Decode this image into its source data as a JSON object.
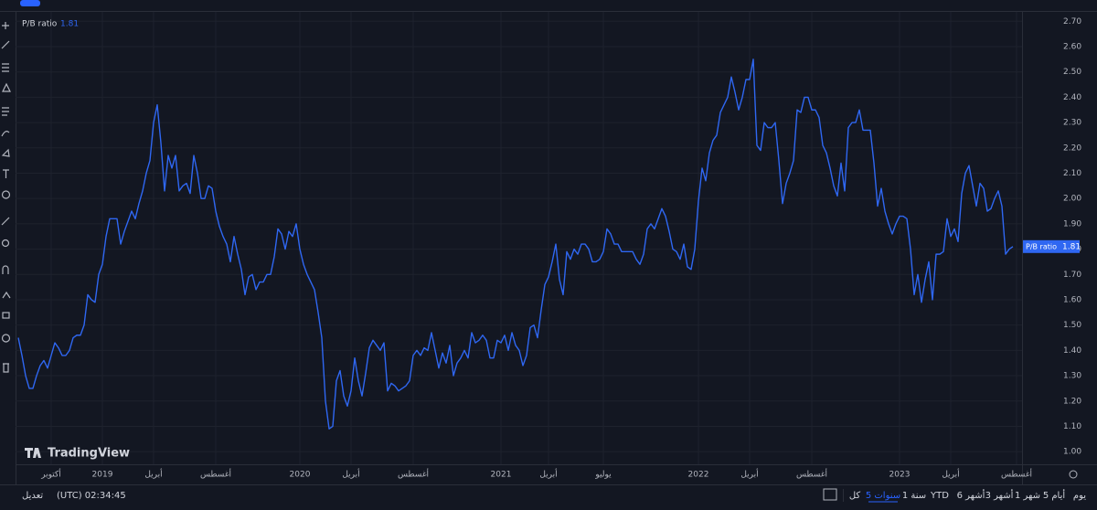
{
  "chart_data": {
    "type": "line",
    "series": [
      {
        "name": "P/B ratio",
        "color": "#2f67f2",
        "values": [
          1.45,
          1.38,
          1.3,
          1.25,
          1.25,
          1.3,
          1.34,
          1.36,
          1.33,
          1.38,
          1.43,
          1.41,
          1.38,
          1.38,
          1.4,
          1.45,
          1.46,
          1.46,
          1.5,
          1.62,
          1.6,
          1.59,
          1.7,
          1.74,
          1.85,
          1.92,
          1.92,
          1.92,
          1.82,
          1.87,
          1.91,
          1.95,
          1.92,
          1.98,
          2.03,
          2.1,
          2.15,
          2.3,
          2.37,
          2.22,
          2.03,
          2.17,
          2.12,
          2.17,
          2.03,
          2.05,
          2.06,
          2.02,
          2.17,
          2.1,
          2.0,
          2.0,
          2.05,
          2.04,
          1.95,
          1.89,
          1.85,
          1.82,
          1.75,
          1.85,
          1.78,
          1.72,
          1.62,
          1.69,
          1.7,
          1.64,
          1.67,
          1.67,
          1.7,
          1.7,
          1.77,
          1.88,
          1.86,
          1.8,
          1.87,
          1.85,
          1.9,
          1.8,
          1.74,
          1.7,
          1.67,
          1.64,
          1.55,
          1.45,
          1.2,
          1.09,
          1.1,
          1.28,
          1.32,
          1.22,
          1.18,
          1.24,
          1.37,
          1.28,
          1.22,
          1.31,
          1.41,
          1.44,
          1.42,
          1.4,
          1.43,
          1.24,
          1.27,
          1.26,
          1.24,
          1.25,
          1.26,
          1.28,
          1.38,
          1.4,
          1.38,
          1.41,
          1.4,
          1.47,
          1.4,
          1.33,
          1.39,
          1.35,
          1.42,
          1.3,
          1.35,
          1.37,
          1.4,
          1.37,
          1.47,
          1.43,
          1.44,
          1.46,
          1.44,
          1.37,
          1.37,
          1.44,
          1.43,
          1.46,
          1.4,
          1.47,
          1.42,
          1.4,
          1.34,
          1.38,
          1.49,
          1.5,
          1.45,
          1.56,
          1.66,
          1.69,
          1.75,
          1.82,
          1.68,
          1.62,
          1.79,
          1.76,
          1.8,
          1.78,
          1.82,
          1.82,
          1.8,
          1.75,
          1.75,
          1.76,
          1.79,
          1.88,
          1.86,
          1.82,
          1.82,
          1.79,
          1.79,
          1.79,
          1.79,
          1.76,
          1.74,
          1.78,
          1.88,
          1.9,
          1.88,
          1.92,
          1.96,
          1.93,
          1.87,
          1.8,
          1.79,
          1.76,
          1.82,
          1.73,
          1.72,
          1.8,
          1.99,
          2.12,
          2.07,
          2.18,
          2.23,
          2.25,
          2.34,
          2.37,
          2.4,
          2.48,
          2.42,
          2.35,
          2.4,
          2.47,
          2.47,
          2.55,
          2.21,
          2.19,
          2.3,
          2.28,
          2.28,
          2.3,
          2.15,
          1.98,
          2.06,
          2.1,
          2.15,
          2.35,
          2.34,
          2.4,
          2.4,
          2.35,
          2.35,
          2.32,
          2.21,
          2.18,
          2.12,
          2.05,
          2.01,
          2.14,
          2.03,
          2.28,
          2.3,
          2.3,
          2.35,
          2.27,
          2.27,
          2.27,
          2.14,
          1.97,
          2.04,
          1.95,
          1.9,
          1.86,
          1.9,
          1.93,
          1.93,
          1.92,
          1.8,
          1.62,
          1.7,
          1.59,
          1.68,
          1.75,
          1.6,
          1.78,
          1.78,
          1.79,
          1.92,
          1.85,
          1.88,
          1.83,
          2.02,
          2.1,
          2.13,
          2.05,
          1.97,
          2.06,
          2.04,
          1.95,
          1.96,
          2.0,
          2.03,
          1.97,
          1.78,
          1.8,
          1.81
        ]
      }
    ],
    "x": [
      0,
      1,
      2,
      3,
      4,
      5,
      6,
      7,
      8,
      9,
      10,
      11,
      12,
      13,
      14,
      15,
      16,
      17,
      18,
      19,
      20,
      21,
      22,
      23,
      24,
      25,
      26,
      27,
      28,
      29,
      30,
      31,
      32,
      33,
      34,
      35,
      36,
      37,
      38,
      39,
      40,
      41,
      42,
      43,
      44,
      45,
      46,
      47,
      48,
      49,
      50,
      51,
      52,
      53,
      54,
      55,
      56,
      57,
      58,
      59,
      60,
      61,
      62,
      63,
      64,
      65,
      66,
      67,
      68,
      69,
      70,
      71,
      72,
      73,
      74,
      75,
      76,
      77,
      78,
      79,
      80,
      81,
      82,
      83,
      84,
      85,
      86,
      87,
      88,
      89,
      90,
      91,
      92,
      93,
      94,
      95,
      96,
      97,
      98,
      99,
      100,
      101,
      102,
      103,
      104,
      105,
      106,
      107,
      108,
      109,
      110,
      111,
      112,
      113,
      114,
      115,
      116,
      117,
      118,
      119,
      120,
      121,
      122,
      123,
      124,
      125,
      126,
      127,
      128,
      129,
      130,
      131,
      132,
      133,
      134,
      135,
      136,
      137,
      138,
      139,
      140,
      141,
      142,
      143,
      144,
      145,
      146,
      147,
      148,
      149,
      150,
      151,
      152,
      153,
      154,
      155,
      156,
      157,
      158,
      159,
      160,
      161,
      162,
      163,
      164,
      165,
      166,
      167,
      168,
      169,
      170,
      171,
      172,
      173,
      174,
      175,
      176,
      177,
      178,
      179,
      180,
      181,
      182,
      183,
      184,
      185,
      186,
      187,
      188,
      189,
      190,
      191,
      192,
      193,
      194,
      195,
      196,
      197,
      198,
      199,
      200,
      201,
      202,
      203,
      204,
      205,
      206,
      207,
      208,
      209,
      210,
      211,
      212,
      213,
      214,
      215,
      216,
      217,
      218,
      219,
      220,
      221,
      222,
      223,
      224,
      225,
      226,
      227,
      228,
      229,
      230,
      231,
      232,
      233,
      234,
      235,
      236,
      237,
      238,
      239,
      240,
      241,
      242,
      243,
      244,
      245,
      246,
      247,
      248,
      249,
      250,
      251,
      252,
      253,
      254,
      255,
      256,
      257,
      258,
      259,
      260,
      261,
      262,
      263,
      264,
      265,
      266,
      267,
      268,
      269,
      270,
      271,
      272
    ],
    "xlim": [
      0,
      275
    ],
    "xticks": [
      {
        "value": 9,
        "label": "أكتوبر"
      },
      {
        "value": 23,
        "label": "2019"
      },
      {
        "value": 37,
        "label": "أبريل"
      },
      {
        "value": 54,
        "label": "أغسطس"
      },
      {
        "value": 77,
        "label": "2020"
      },
      {
        "value": 91,
        "label": "أبريل"
      },
      {
        "value": 108,
        "label": "أغسطس"
      },
      {
        "value": 132,
        "label": "2021"
      },
      {
        "value": 145,
        "label": "أبريل"
      },
      {
        "value": 160,
        "label": "يوليو"
      },
      {
        "value": 186,
        "label": "2022"
      },
      {
        "value": 200,
        "label": "أبريل"
      },
      {
        "value": 217,
        "label": "أغسطس"
      },
      {
        "value": 241,
        "label": "2023"
      },
      {
        "value": 255,
        "label": "أبريل"
      },
      {
        "value": 273,
        "label": "أغسطس"
      }
    ],
    "ylim": [
      0.95,
      2.73
    ],
    "yticks": [
      {
        "value": 1,
        "label": "1.00"
      },
      {
        "value": 1.1,
        "label": "1.10"
      },
      {
        "value": 1.2,
        "label": "1.20"
      },
      {
        "value": 1.3,
        "label": "1.30"
      },
      {
        "value": 1.4,
        "label": "1.40"
      },
      {
        "value": 1.5,
        "label": "1.50"
      },
      {
        "value": 1.6,
        "label": "1.60"
      },
      {
        "value": 1.7,
        "label": "1.70"
      },
      {
        "value": 1.8,
        "label": "1.80"
      },
      {
        "value": 1.9,
        "label": "1.90"
      },
      {
        "value": 2,
        "label": "2.00"
      },
      {
        "value": 2.1,
        "label": "2.10"
      },
      {
        "value": 2.2,
        "label": "2.20"
      },
      {
        "value": 2.3,
        "label": "2.30"
      },
      {
        "value": 2.4,
        "label": "2.40"
      },
      {
        "value": 2.5,
        "label": "2.50"
      },
      {
        "value": 2.6,
        "label": "2.60"
      },
      {
        "value": 2.7,
        "label": "2.70"
      }
    ],
    "grid": true
  },
  "ui": {
    "brand": "TradingView",
    "ranges": [
      "يوم",
      "5 أيام",
      "1 شهر",
      "3 أشهر",
      "6 أشهر",
      "YTD",
      "1 سنة",
      "5 سنوات",
      "كل"
    ],
    "clock": "(UTC) 02:34:45",
    "adjust": "تعديل"
  }
}
